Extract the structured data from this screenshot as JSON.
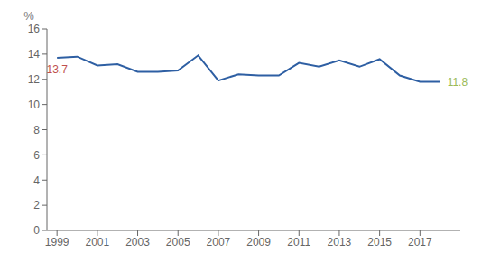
{
  "chart_data": {
    "type": "line",
    "x": [
      1999,
      2000,
      2001,
      2002,
      2003,
      2004,
      2005,
      2006,
      2007,
      2008,
      2009,
      2010,
      2011,
      2012,
      2013,
      2014,
      2015,
      2016,
      2017,
      2018
    ],
    "values": [
      13.7,
      13.8,
      13.1,
      13.2,
      12.6,
      12.6,
      12.7,
      13.9,
      11.9,
      12.4,
      12.3,
      12.3,
      13.3,
      13.0,
      13.5,
      13.0,
      13.6,
      12.3,
      11.8,
      11.8
    ],
    "color": "#2E5FA3",
    "ylabel": "%",
    "xlim": [
      1998.5,
      2019.0
    ],
    "xticks": [
      1999,
      2001,
      2003,
      2005,
      2007,
      2009,
      2011,
      2013,
      2015,
      2017
    ],
    "ylim": [
      0,
      16
    ],
    "yticks": [
      0,
      2,
      4,
      6,
      8,
      10,
      12,
      14,
      16
    ],
    "grid": false,
    "annotations": [
      {
        "text": "13.7",
        "x": 1999,
        "y": 13.7,
        "color": "#C0504D"
      },
      {
        "text": "11.8",
        "x": 2018,
        "y": 11.8,
        "color": "#9BBB59"
      }
    ]
  }
}
